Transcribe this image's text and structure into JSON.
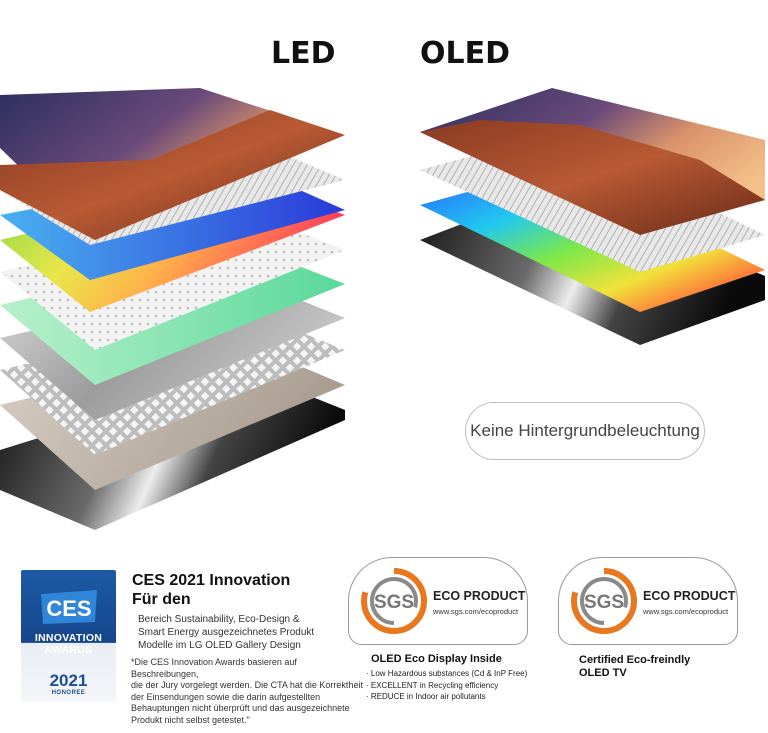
{
  "headings": {
    "led": "LED",
    "oled": "OLED"
  },
  "pill_label": "Keine Hintergrundbeleuchtung",
  "ces": {
    "badge_line1": "INNOVATION",
    "badge_line2": "AWARDS",
    "badge_year": "2021",
    "badge_honoree": "HONOREE",
    "badge_logo": "CES",
    "title_line1": "CES 2021 Innovation",
    "title_line2": "Für den",
    "desc_line1": "Bereich Sustainability, Eco-Design &",
    "desc_line2": "Smart Energy ausgezeichnetes Produkt",
    "desc_line3": "Modelle im LG OLED Gallery Design",
    "note_line1": "*Die CES Innovation Awards basieren auf Beschreibungen,",
    "note_line2": "die der Jury vorgelegt werden. Die CTA hat die Korrektheit",
    "note_line3": "der Einsendungen sowie die darin aufgestellten",
    "note_line4": "Behauptungen nicht überprüft und das ausgezeichnete",
    "note_line5": "Produkt nicht selbst getestet.\""
  },
  "sgs_left": {
    "logo": "SGS",
    "eco": "ECO PRODUCT",
    "url": "www.sgs.com/ecoproduct",
    "title": "OLED Eco Display Inside",
    "items": [
      "· Low Hazardous substances (Cd & InP Free)",
      "· EXCELLENT in Recycling efficiency",
      "· REDUCE in Indoor air pollutants"
    ]
  },
  "sgs_right": {
    "logo": "SGS",
    "eco": "ECO PRODUCT",
    "url": "www.sgs.com/ecoproduct",
    "title_line1": "Certified Eco-freindly",
    "title_line2": "OLED TV"
  },
  "colors": {
    "ces_blue": "#1c5aa6",
    "sgs_orange": "#e8771e",
    "sgs_grey": "#8a8a8a"
  }
}
